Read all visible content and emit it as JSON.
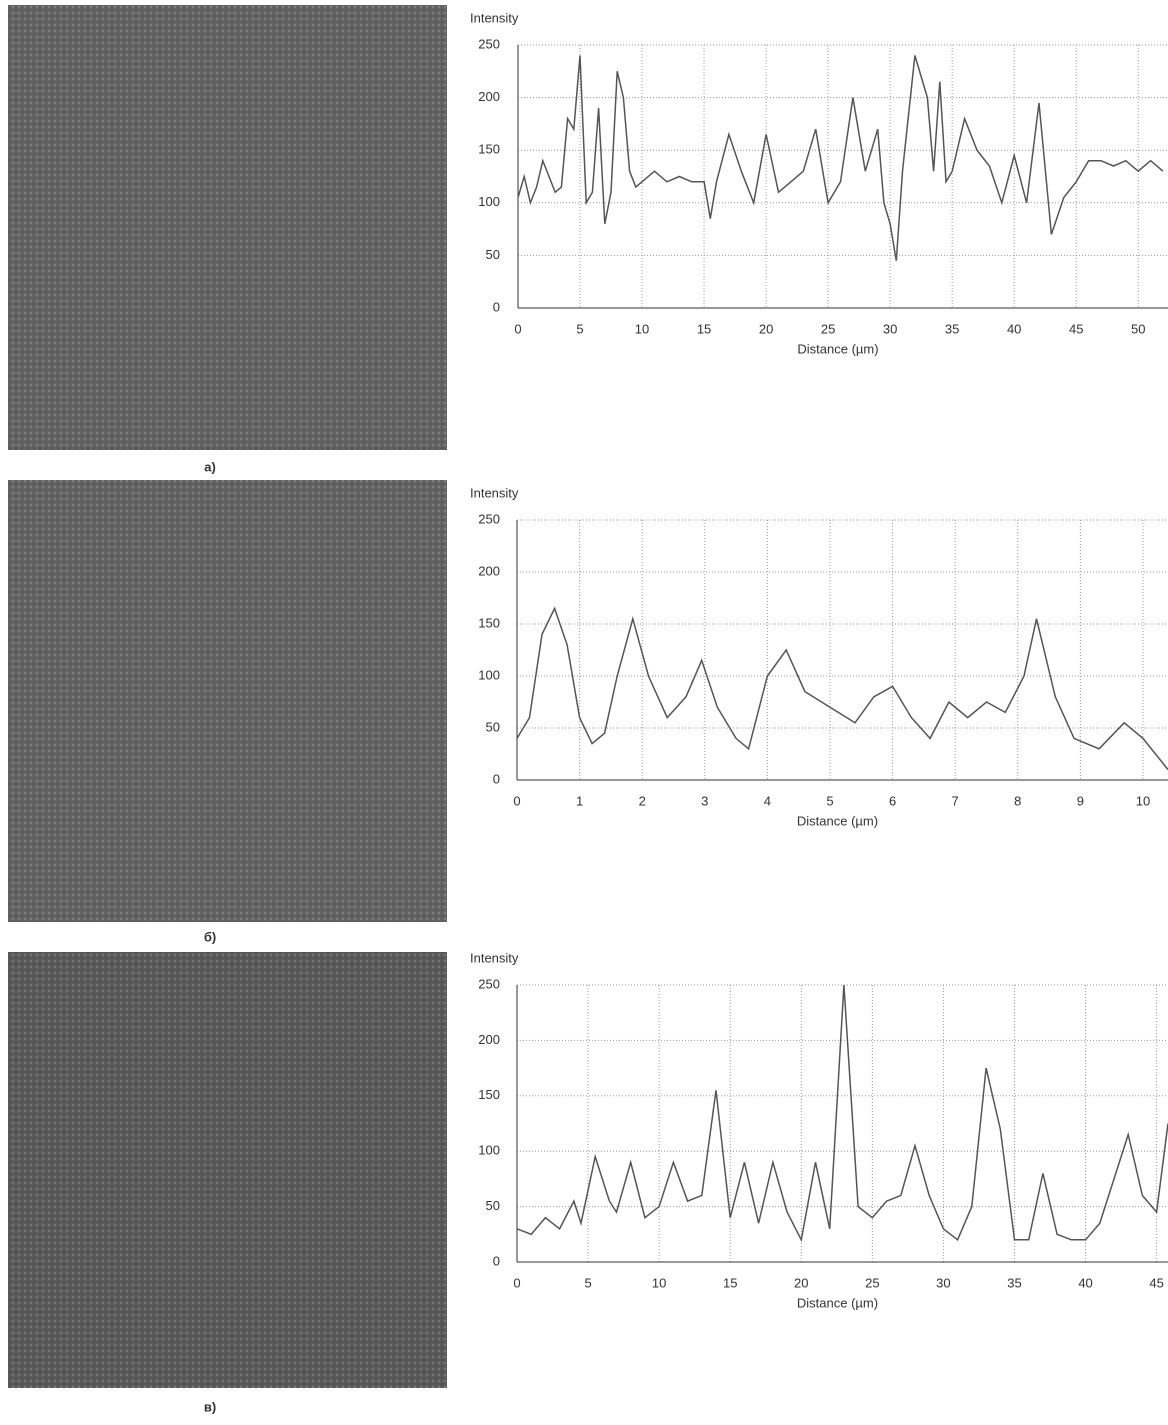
{
  "chart_data": [
    {
      "type": "line",
      "panel_label": "a)",
      "ylabel": "Intensity",
      "xlabel": "Distance (µm)",
      "color": "#555555",
      "grid": true,
      "xlim": [
        0,
        52.4
      ],
      "ylim": [
        0,
        250
      ],
      "xticks": [
        0,
        5,
        10,
        15,
        20,
        25,
        30,
        35,
        40,
        45,
        50
      ],
      "yticks": [
        0,
        50,
        100,
        150,
        200,
        250
      ],
      "x": [
        0,
        0.5,
        1,
        1.5,
        2,
        2.5,
        3,
        3.5,
        4,
        4.5,
        5,
        5.5,
        6,
        6.5,
        7,
        7.5,
        8,
        8.5,
        9,
        9.5,
        10,
        11,
        12,
        13,
        14,
        15,
        15.5,
        16,
        17,
        18,
        19,
        20,
        21,
        22,
        23,
        24,
        25,
        26,
        27,
        28,
        29,
        29.5,
        30,
        30.5,
        31,
        32,
        33,
        33.5,
        34,
        34.5,
        35,
        36,
        37,
        38,
        39,
        40,
        41,
        42,
        43,
        44,
        45,
        46,
        47,
        48,
        49,
        50,
        51,
        52
      ],
      "values": [
        105,
        125,
        100,
        115,
        140,
        125,
        110,
        115,
        180,
        170,
        240,
        100,
        110,
        190,
        80,
        110,
        225,
        200,
        130,
        115,
        120,
        130,
        120,
        125,
        120,
        120,
        85,
        120,
        165,
        130,
        100,
        165,
        110,
        120,
        130,
        170,
        100,
        120,
        200,
        130,
        170,
        100,
        80,
        45,
        130,
        240,
        200,
        130,
        215,
        120,
        130,
        180,
        150,
        135,
        100,
        145,
        100,
        195,
        70,
        105,
        120,
        140,
        140,
        135,
        140,
        130,
        140,
        130
      ]
    },
    {
      "type": "line",
      "panel_label": "б)",
      "ylabel": "Intensity",
      "xlabel": "Distance (µm)",
      "color": "#555555",
      "grid": true,
      "xlim": [
        0,
        10.4
      ],
      "ylim": [
        0,
        250
      ],
      "xticks": [
        0,
        1,
        2,
        3,
        4,
        5,
        6,
        7,
        8,
        9,
        10
      ],
      "yticks": [
        0,
        50,
        100,
        150,
        200,
        250
      ],
      "x": [
        0,
        0.2,
        0.4,
        0.6,
        0.8,
        1,
        1.2,
        1.4,
        1.6,
        1.85,
        2.1,
        2.4,
        2.7,
        2.95,
        3.2,
        3.5,
        3.7,
        4,
        4.3,
        4.6,
        5,
        5.4,
        5.7,
        6,
        6.3,
        6.6,
        6.9,
        7.2,
        7.5,
        7.8,
        8.1,
        8.3,
        8.6,
        8.9,
        9.3,
        9.7,
        10,
        10.4
      ],
      "values": [
        40,
        60,
        140,
        165,
        130,
        60,
        35,
        45,
        100,
        155,
        100,
        60,
        80,
        115,
        70,
        40,
        30,
        100,
        125,
        85,
        70,
        55,
        80,
        90,
        60,
        40,
        75,
        60,
        75,
        65,
        100,
        155,
        80,
        40,
        30,
        55,
        40,
        10
      ]
    },
    {
      "type": "line",
      "panel_label": "в)",
      "ylabel": "Intensity",
      "xlabel": "Distance (µm)",
      "color": "#555555",
      "grid": true,
      "xlim": [
        0,
        45.8
      ],
      "ylim": [
        0,
        250
      ],
      "xticks": [
        0,
        5,
        10,
        15,
        20,
        25,
        30,
        35,
        40,
        45
      ],
      "yticks": [
        0,
        50,
        100,
        150,
        200,
        250
      ],
      "x": [
        0,
        1,
        2,
        3,
        4,
        4.5,
        5.5,
        6.5,
        7,
        8,
        9,
        10,
        11,
        12,
        13,
        14,
        15,
        16,
        17,
        18,
        19,
        20,
        21,
        22,
        23,
        24,
        25,
        26,
        27,
        28,
        29,
        30,
        31,
        32,
        33,
        34,
        35,
        36,
        37,
        38,
        39,
        40,
        41,
        43,
        44,
        45,
        45.8
      ],
      "values": [
        30,
        25,
        40,
        30,
        55,
        35,
        95,
        55,
        45,
        90,
        40,
        50,
        90,
        55,
        60,
        155,
        40,
        90,
        35,
        90,
        45,
        20,
        90,
        30,
        250,
        50,
        40,
        55,
        60,
        105,
        60,
        30,
        20,
        50,
        175,
        120,
        20,
        20,
        80,
        25,
        20,
        20,
        35,
        115,
        60,
        45,
        125
      ]
    }
  ]
}
